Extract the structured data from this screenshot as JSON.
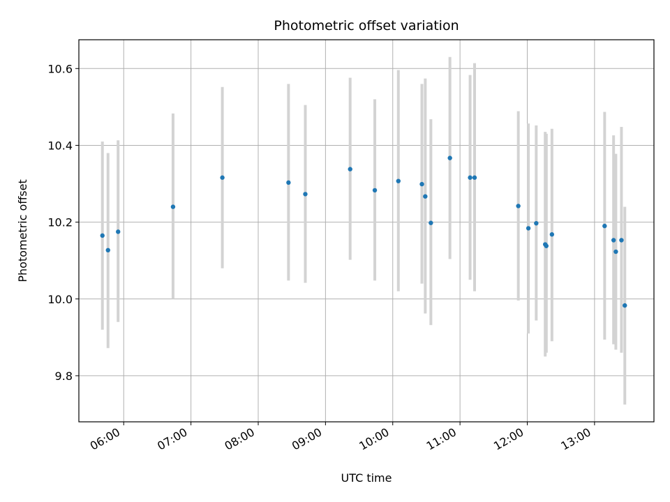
{
  "chart_data": {
    "type": "scatter",
    "title": "Photometric offset variation",
    "xlabel": "UTC time",
    "ylabel": "Photometric offset",
    "x_ticks": [
      "06:00",
      "07:00",
      "08:00",
      "09:00",
      "10:00",
      "11:00",
      "12:00",
      "13:00"
    ],
    "y_ticks": [
      "9.8",
      "10.0",
      "10.2",
      "10.4",
      "10.6"
    ],
    "xlim": [
      "05:20",
      "13:53"
    ],
    "ylim": [
      9.68,
      10.675
    ],
    "grid": true,
    "colors": {
      "point": "#1f77b4",
      "errorbar": "#d3d3d3",
      "grid": "#b0b0b0"
    },
    "points": [
      {
        "x": "05:41",
        "y": 10.165,
        "ylo": 9.92,
        "yhi": 10.41
      },
      {
        "x": "05:46",
        "y": 10.127,
        "ylo": 9.872,
        "yhi": 10.38
      },
      {
        "x": "05:55",
        "y": 10.175,
        "ylo": 9.94,
        "yhi": 10.413
      },
      {
        "x": "06:44",
        "y": 10.24,
        "ylo": 10.0,
        "yhi": 10.483
      },
      {
        "x": "07:28",
        "y": 10.316,
        "ylo": 10.08,
        "yhi": 10.552
      },
      {
        "x": "08:27",
        "y": 10.303,
        "ylo": 10.048,
        "yhi": 10.56
      },
      {
        "x": "08:42",
        "y": 10.273,
        "ylo": 10.042,
        "yhi": 10.505
      },
      {
        "x": "09:22",
        "y": 10.338,
        "ylo": 10.102,
        "yhi": 10.576
      },
      {
        "x": "09:44",
        "y": 10.283,
        "ylo": 10.048,
        "yhi": 10.52
      },
      {
        "x": "10:05",
        "y": 10.307,
        "ylo": 10.02,
        "yhi": 10.596
      },
      {
        "x": "10:26",
        "y": 10.299,
        "ylo": 10.04,
        "yhi": 10.56
      },
      {
        "x": "10:29",
        "y": 10.267,
        "ylo": 9.962,
        "yhi": 10.574
      },
      {
        "x": "10:34",
        "y": 10.198,
        "ylo": 9.932,
        "yhi": 10.468
      },
      {
        "x": "10:51",
        "y": 10.367,
        "ylo": 10.104,
        "yhi": 10.63
      },
      {
        "x": "11:09",
        "y": 10.316,
        "ylo": 10.05,
        "yhi": 10.583
      },
      {
        "x": "11:13",
        "y": 10.316,
        "ylo": 10.02,
        "yhi": 10.614
      },
      {
        "x": "11:52",
        "y": 10.242,
        "ylo": 9.996,
        "yhi": 10.489
      },
      {
        "x": "12:01",
        "y": 10.184,
        "ylo": 9.91,
        "yhi": 10.457
      },
      {
        "x": "12:08",
        "y": 10.197,
        "ylo": 9.944,
        "yhi": 10.452
      },
      {
        "x": "12:16",
        "y": 10.142,
        "ylo": 9.85,
        "yhi": 10.435
      },
      {
        "x": "12:17",
        "y": 10.138,
        "ylo": 9.86,
        "yhi": 10.43
      },
      {
        "x": "12:22",
        "y": 10.168,
        "ylo": 9.89,
        "yhi": 10.443
      },
      {
        "x": "13:09",
        "y": 10.19,
        "ylo": 9.894,
        "yhi": 10.487
      },
      {
        "x": "13:17",
        "y": 10.153,
        "ylo": 9.882,
        "yhi": 10.426
      },
      {
        "x": "13:19",
        "y": 10.123,
        "ylo": 9.868,
        "yhi": 10.378
      },
      {
        "x": "13:24",
        "y": 10.153,
        "ylo": 9.86,
        "yhi": 10.448
      },
      {
        "x": "13:27",
        "y": 9.983,
        "ylo": 9.725,
        "yhi": 10.24
      }
    ]
  }
}
